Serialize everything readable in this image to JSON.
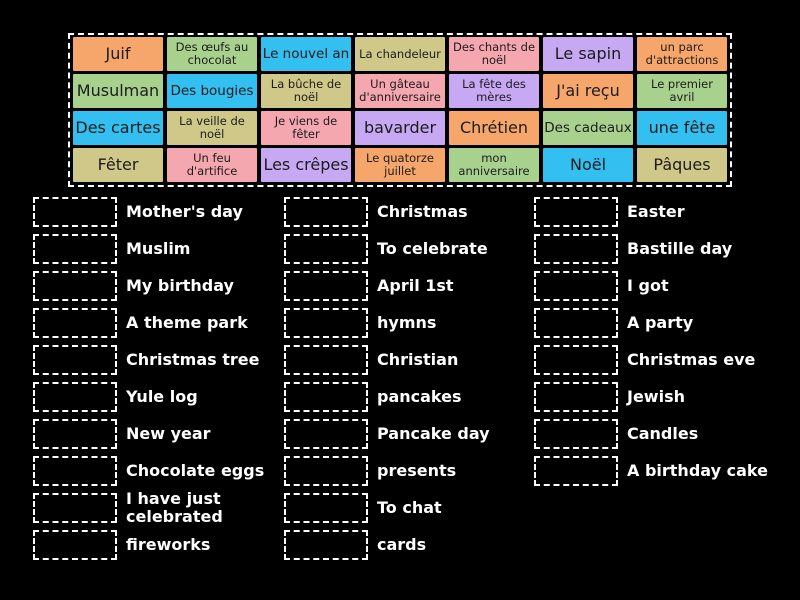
{
  "colors": {
    "orange": "#f6a66b",
    "green": "#a9d18e",
    "blue": "#33bff0",
    "khaki": "#cfc888",
    "pink": "#f5a7b0",
    "purple": "#c7a8f3",
    "background": "#000000",
    "border": "#ffffff"
  },
  "tiles": [
    {
      "label": "Juif",
      "color": "orange",
      "size": "big"
    },
    {
      "label": "Des œufs au chocolat",
      "color": "green",
      "size": "small"
    },
    {
      "label": "Le nouvel an",
      "color": "blue",
      "size": "med"
    },
    {
      "label": "La chandeleur",
      "color": "khaki",
      "size": "small"
    },
    {
      "label": "Des chants de noël",
      "color": "pink",
      "size": "small"
    },
    {
      "label": "Le sapin",
      "color": "purple",
      "size": "big"
    },
    {
      "label": "un parc d'attractions",
      "color": "orange",
      "size": "small"
    },
    {
      "label": "Musulman",
      "color": "green",
      "size": "big"
    },
    {
      "label": "Des bougies",
      "color": "blue",
      "size": "med"
    },
    {
      "label": "La bûche de noël",
      "color": "khaki",
      "size": "small"
    },
    {
      "label": "Un gâteau d'anniversaire",
      "color": "pink",
      "size": "small"
    },
    {
      "label": "La fête des mères",
      "color": "purple",
      "size": "small"
    },
    {
      "label": "J'ai reçu",
      "color": "orange",
      "size": "big"
    },
    {
      "label": "Le premier avril",
      "color": "green",
      "size": "small"
    },
    {
      "label": "Des cartes",
      "color": "blue",
      "size": "big"
    },
    {
      "label": "La veille de noël",
      "color": "khaki",
      "size": "small"
    },
    {
      "label": "Je viens de fêter",
      "color": "pink",
      "size": "small"
    },
    {
      "label": "bavarder",
      "color": "purple",
      "size": "big"
    },
    {
      "label": "Chrétien",
      "color": "orange",
      "size": "big"
    },
    {
      "label": "Des cadeaux",
      "color": "green",
      "size": "med"
    },
    {
      "label": "une fête",
      "color": "blue",
      "size": "big"
    },
    {
      "label": "Fêter",
      "color": "khaki",
      "size": "big"
    },
    {
      "label": "Un feu d'artifice",
      "color": "pink",
      "size": "small"
    },
    {
      "label": "Les crêpes",
      "color": "purple",
      "size": "big"
    },
    {
      "label": "Le quatorze juillet",
      "color": "orange",
      "size": "small"
    },
    {
      "label": "mon anniversaire",
      "color": "green",
      "size": "small"
    },
    {
      "label": "Noël",
      "color": "blue",
      "size": "big"
    },
    {
      "label": "Pâques",
      "color": "khaki",
      "size": "big"
    }
  ],
  "columns": [
    {
      "items": [
        "Mother's day",
        "Muslim",
        "My birthday",
        "A theme park",
        "Christmas tree",
        "Yule log",
        "New year",
        "Chocolate eggs",
        "I have just celebrated",
        "fireworks"
      ]
    },
    {
      "items": [
        "Christmas",
        "To celebrate",
        "April 1st",
        "hymns",
        "Christian",
        "pancakes",
        "Pancake day",
        "presents",
        "To chat",
        "cards"
      ]
    },
    {
      "items": [
        "Easter",
        "Bastille day",
        "I got",
        "A party",
        "Christmas eve",
        "Jewish",
        "Candles",
        "A birthday cake"
      ]
    }
  ]
}
